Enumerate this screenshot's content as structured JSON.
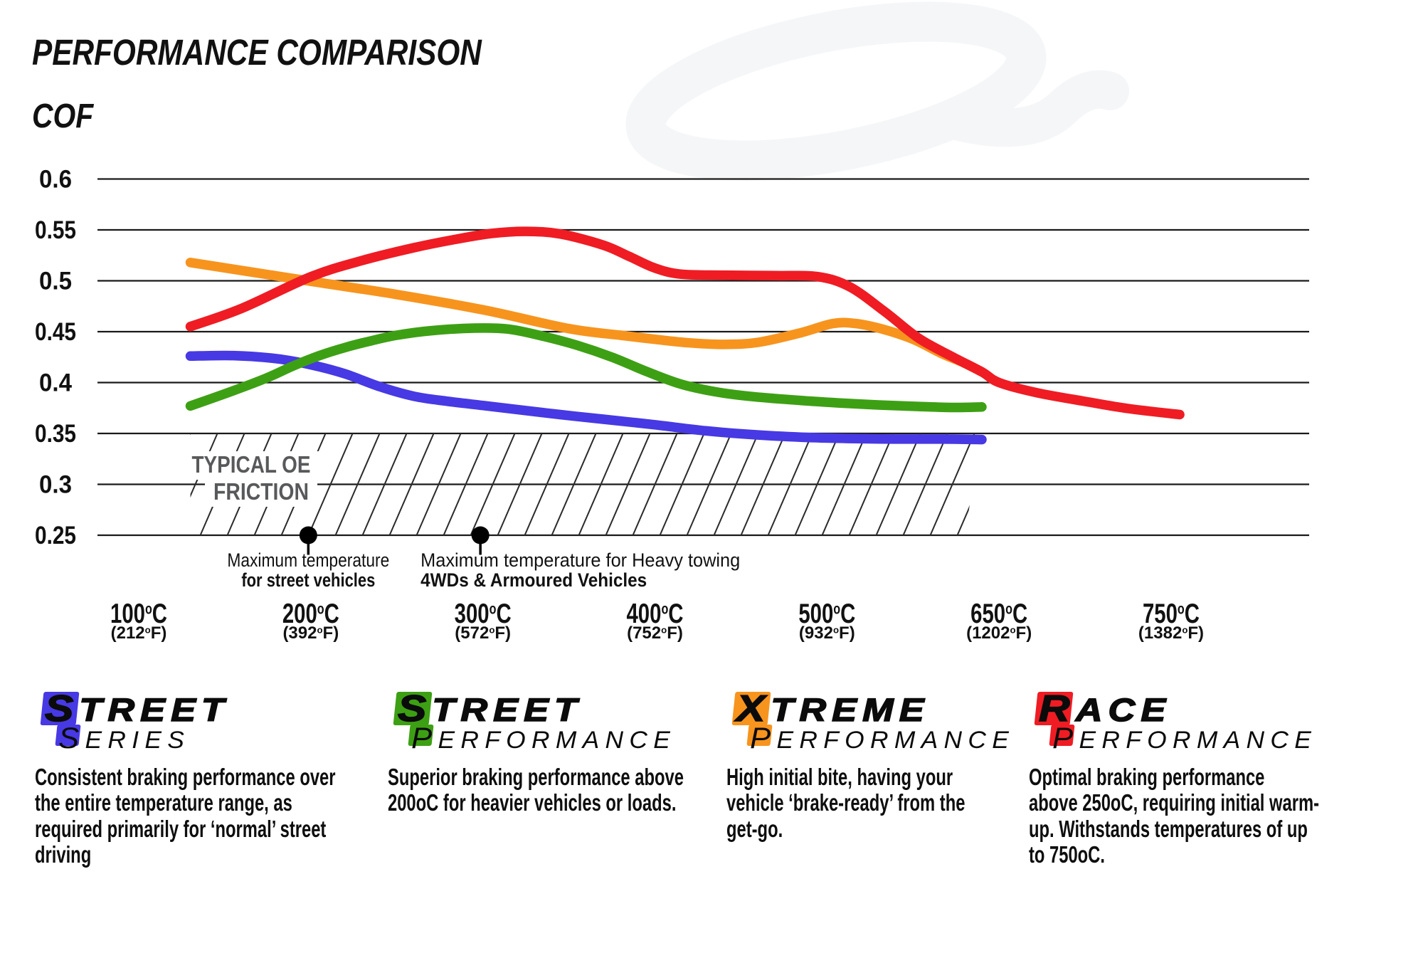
{
  "title": "PERFORMANCE COMPARISON",
  "colors": {
    "blue": "#4739E3",
    "green": "#3DA014",
    "orange": "#F7941E",
    "red": "#EF1C24",
    "ink": "#111111",
    "grid": "#1a1a1a",
    "hatch": "#2a2a2a",
    "oe_text": "#58595B",
    "watermark": "#f5f6f8"
  },
  "chart_data": {
    "type": "line",
    "title": "PERFORMANCE COMPARISON",
    "ylabel": "COF",
    "ylim": [
      0.25,
      0.6
    ],
    "y_ticks": [
      "0.6",
      "0.55",
      "0.5",
      "0.45",
      "0.4",
      "0.35",
      "0.3",
      "0.25"
    ],
    "grid": true,
    "legend_position": "bottom",
    "x_ticks": [
      {
        "temp_c": 100,
        "label_c": "100°C",
        "label_f": "(212°F)"
      },
      {
        "temp_c": 200,
        "label_c": "200°C",
        "label_f": "(392°F)"
      },
      {
        "temp_c": 300,
        "label_c": "300°C",
        "label_f": "(572°F)"
      },
      {
        "temp_c": 400,
        "label_c": "400°C",
        "label_f": "(752°F)"
      },
      {
        "temp_c": 500,
        "label_c": "500°C",
        "label_f": "(932°F)"
      },
      {
        "temp_c": 650,
        "label_c": "650°C",
        "label_f": "(1202°F)"
      },
      {
        "temp_c": 750,
        "label_c": "750°C",
        "label_f": "(1382°F)"
      }
    ],
    "series": [
      {
        "name": "Street Series",
        "color": "blue",
        "points": [
          [
            130,
            0.426
          ],
          [
            155,
            0.4265
          ],
          [
            180,
            0.4235
          ],
          [
            200,
            0.4175
          ],
          [
            220,
            0.4085
          ],
          [
            240,
            0.396
          ],
          [
            260,
            0.3865
          ],
          [
            280,
            0.3815
          ],
          [
            300,
            0.3775
          ],
          [
            320,
            0.3735
          ],
          [
            345,
            0.3685
          ],
          [
            370,
            0.364
          ],
          [
            400,
            0.3585
          ],
          [
            430,
            0.3525
          ],
          [
            460,
            0.3485
          ],
          [
            490,
            0.346
          ],
          [
            520,
            0.345
          ],
          [
            560,
            0.3445
          ],
          [
            600,
            0.3445
          ],
          [
            635,
            0.344
          ]
        ]
      },
      {
        "name": "Street Performance",
        "color": "green",
        "points": [
          [
            130,
            0.377
          ],
          [
            155,
            0.392
          ],
          [
            175,
            0.405
          ],
          [
            190,
            0.4165
          ],
          [
            205,
            0.4265
          ],
          [
            220,
            0.4345
          ],
          [
            235,
            0.441
          ],
          [
            250,
            0.4465
          ],
          [
            270,
            0.451
          ],
          [
            295,
            0.4535
          ],
          [
            315,
            0.4525
          ],
          [
            335,
            0.4455
          ],
          [
            355,
            0.4365
          ],
          [
            375,
            0.425
          ],
          [
            395,
            0.411
          ],
          [
            415,
            0.3985
          ],
          [
            435,
            0.391
          ],
          [
            455,
            0.3865
          ],
          [
            480,
            0.383
          ],
          [
            510,
            0.38
          ],
          [
            545,
            0.378
          ],
          [
            580,
            0.3765
          ],
          [
            610,
            0.3755
          ],
          [
            635,
            0.376
          ]
        ]
      },
      {
        "name": "Xtreme Performance",
        "color": "orange",
        "points": [
          [
            130,
            0.518
          ],
          [
            200,
            0.4995
          ],
          [
            250,
            0.4865
          ],
          [
            300,
            0.4715
          ],
          [
            350,
            0.453
          ],
          [
            380,
            0.4465
          ],
          [
            400,
            0.4425
          ],
          [
            420,
            0.439
          ],
          [
            440,
            0.4375
          ],
          [
            460,
            0.4395
          ],
          [
            485,
            0.449
          ],
          [
            505,
            0.458
          ],
          [
            525,
            0.458
          ],
          [
            550,
            0.452
          ],
          [
            575,
            0.4425
          ],
          [
            600,
            0.4285
          ],
          [
            620,
            0.419
          ],
          [
            635,
            0.4105
          ]
        ]
      },
      {
        "name": "Race Performance",
        "color": "red",
        "points": [
          [
            130,
            0.455
          ],
          [
            160,
            0.473
          ],
          [
            200,
            0.504
          ],
          [
            230,
            0.52
          ],
          [
            260,
            0.5325
          ],
          [
            285,
            0.541
          ],
          [
            305,
            0.5465
          ],
          [
            325,
            0.5485
          ],
          [
            345,
            0.546
          ],
          [
            370,
            0.535
          ],
          [
            385,
            0.524
          ],
          [
            400,
            0.5125
          ],
          [
            415,
            0.5065
          ],
          [
            440,
            0.5055
          ],
          [
            470,
            0.505
          ],
          [
            495,
            0.504
          ],
          [
            520,
            0.494
          ],
          [
            550,
            0.47
          ],
          [
            580,
            0.4435
          ],
          [
            610,
            0.425
          ],
          [
            635,
            0.4105
          ],
          [
            650,
            0.4
          ],
          [
            672,
            0.39
          ],
          [
            700,
            0.3815
          ],
          [
            725,
            0.3745
          ],
          [
            755,
            0.3685
          ]
        ]
      }
    ],
    "oe_zone": {
      "label_lines": [
        "TYPICAL OE",
        "FRICTION"
      ],
      "y_from": 0.25,
      "y_to": 0.35,
      "temp_from": 130,
      "temp_to": 634
    },
    "markers": [
      {
        "temp_c": 200,
        "align": "center",
        "lines": [
          "Maximum temperature",
          "for street vehicles"
        ]
      },
      {
        "temp_c": 300,
        "align": "left",
        "lines": [
          "Maximum temperature for Heavy towing",
          "4WDs & Armoured Vehicles"
        ]
      }
    ]
  },
  "legend": [
    {
      "brand": "STREET",
      "sub": "SERIES",
      "color": "blue",
      "description": [
        "Consistent braking performance over",
        "the entire temperature range, as",
        "required primarily for ‘normal’ street",
        "driving"
      ]
    },
    {
      "brand": "STREET",
      "sub": "PERFORMANCE",
      "color": "green",
      "description": [
        "Superior braking performance above",
        "200oC for heavier vehicles or loads."
      ]
    },
    {
      "brand": "XTREME",
      "sub": "PERFORMANCE",
      "color": "orange",
      "description": [
        "High initial bite, having your",
        "vehicle ‘brake-ready’ from the",
        "get-go."
      ]
    },
    {
      "brand": "RACE",
      "sub": "PERFORMANCE",
      "color": "red",
      "description": [
        "Optimal braking performance",
        "above 250oC, requiring initial warm-",
        "up. Withstands temperatures of up",
        "to 750oC."
      ]
    }
  ]
}
